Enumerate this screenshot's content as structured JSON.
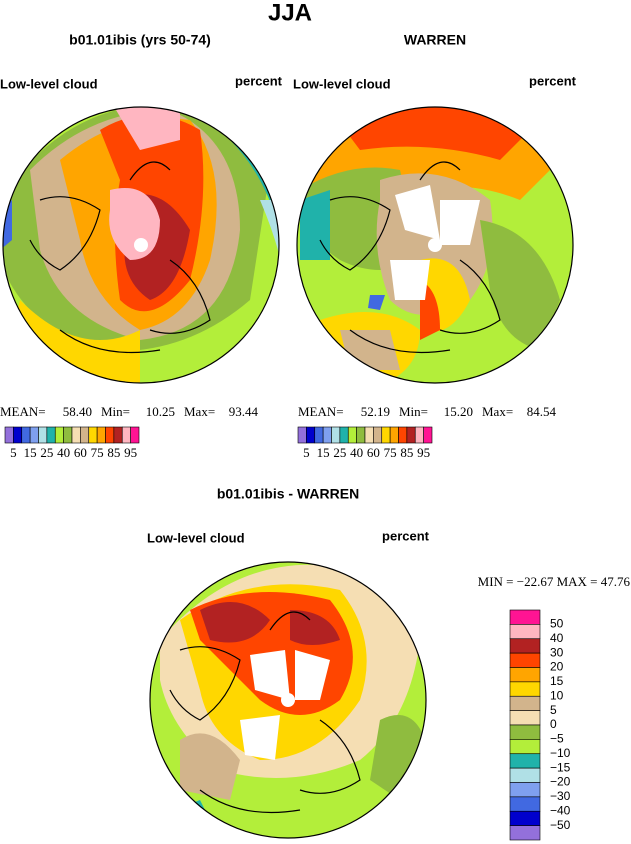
{
  "title": "JJA",
  "panels": [
    {
      "title": "b01.01ibis (yrs 50-74)",
      "left_label": "Low-level cloud",
      "right_label": "percent",
      "stats": [
        "MEAN=",
        "58.40",
        "Min=",
        "10.25",
        "Max=",
        "93.44"
      ]
    },
    {
      "title": "WARREN",
      "left_label": "Low-level cloud",
      "right_label": "percent",
      "stats": [
        "MEAN=",
        "52.19",
        "Min=",
        "15.20",
        "Max=",
        "84.54"
      ]
    }
  ],
  "colorbar": {
    "colors": [
      "#9370db",
      "#0000cd",
      "#4169e1",
      "#7fa0ef",
      "#b0e0e6",
      "#20b2aa",
      "#b3ee3a",
      "#8fbc3f",
      "#f5deb3",
      "#d2b48c",
      "#ffd700",
      "#ffa500",
      "#ff4500",
      "#b22222",
      "#ffb6c1",
      "#ff1493"
    ],
    "labels": [
      "5",
      "15",
      "25",
      "40",
      "60",
      "75",
      "85",
      "95"
    ]
  },
  "difference": {
    "title": "b01.01ibis - WARREN",
    "left_label": "Low-level cloud",
    "right_label": "percent",
    "minmax": "MIN = −22.67 MAX =  47.76",
    "colorbar": {
      "colors": [
        "#ff1493",
        "#ffb6c1",
        "#b22222",
        "#ff4500",
        "#ffa500",
        "#ffd700",
        "#d2b48c",
        "#f5deb3",
        "#8fbc3f",
        "#b3ee3a",
        "#20b2aa",
        "#b0e0e6",
        "#7fa0ef",
        "#4169e1",
        "#0000cd",
        "#9370db"
      ],
      "labels": [
        "50",
        "40",
        "30",
        "20",
        "15",
        "10",
        "5",
        "0",
        "−5",
        "−10",
        "−15",
        "−20",
        "−30",
        "−40",
        "−50"
      ]
    }
  }
}
